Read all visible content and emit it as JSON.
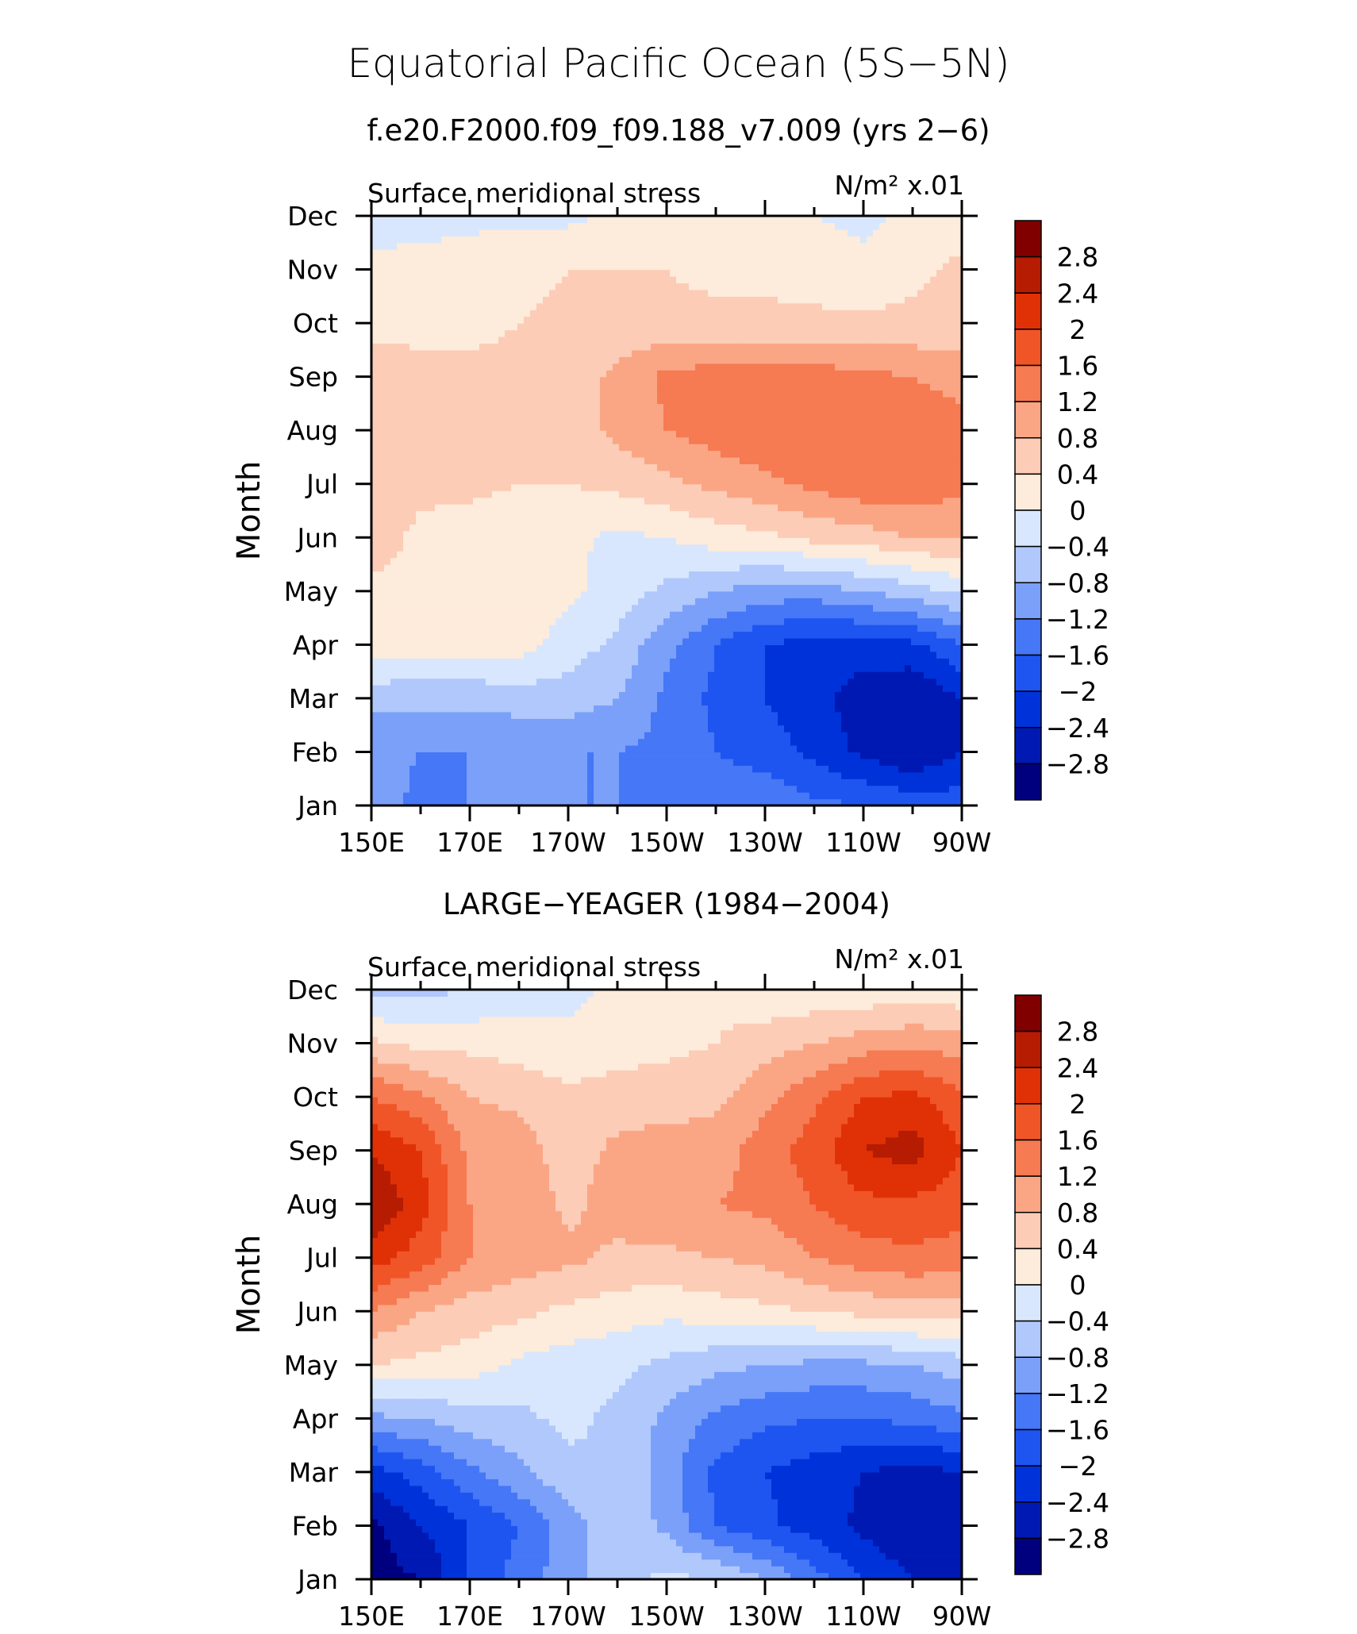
{
  "figure": {
    "title": "Equatorial Pacific Ocean (5S−5N)",
    "subtitle": "f.e20.F2000.f09_f09.188_v7.009 (yrs 2−6)"
  },
  "chart_data": [
    {
      "type": "heatmap",
      "panel_title": "",
      "left_label": "Surface meridional stress",
      "units_label": "N/m² x.01",
      "xlabel": "",
      "ylabel": "Month",
      "x_ticks": [
        "150E",
        "170E",
        "170W",
        "150W",
        "130W",
        "110W",
        "90W"
      ],
      "y_ticks": [
        "Jan",
        "Feb",
        "Mar",
        "Apr",
        "May",
        "Jun",
        "Jul",
        "Aug",
        "Sep",
        "Oct",
        "Nov",
        "Dec"
      ],
      "x_lon": [
        150,
        160,
        170,
        180,
        190,
        200,
        210,
        220,
        230,
        240,
        250,
        260,
        270
      ],
      "z": [
        [
          -1.0,
          -1.3,
          -1.2,
          -1.2,
          -1.2,
          -1.2,
          -1.2,
          -1.2,
          -1.3,
          -1.5,
          -1.6,
          -1.7,
          -1.8
        ],
        [
          -1.1,
          -1.2,
          -1.2,
          -1.2,
          -1.2,
          -1.2,
          -1.3,
          -1.6,
          -1.8,
          -2.1,
          -2.5,
          -2.8,
          -2.4
        ],
        [
          -0.7,
          -0.7,
          -0.7,
          -0.6,
          -0.6,
          -0.8,
          -1.3,
          -1.7,
          -2.0,
          -2.3,
          -2.6,
          -2.8,
          -2.4
        ],
        [
          0.3,
          0.2,
          0.2,
          0.2,
          -0.2,
          -0.5,
          -1.1,
          -1.6,
          -2.0,
          -2.2,
          -2.2,
          -2.1,
          -1.6
        ],
        [
          0.3,
          0.3,
          0.3,
          0.2,
          0.1,
          -0.2,
          -0.5,
          -0.8,
          -1.0,
          -1.0,
          -0.8,
          -0.6,
          -0.3
        ],
        [
          0.6,
          0.3,
          0.2,
          0.1,
          0.1,
          -0.1,
          0.0,
          0.2,
          0.3,
          0.5,
          0.6,
          0.8,
          0.8
        ],
        [
          0.6,
          0.5,
          0.5,
          0.4,
          0.4,
          0.5,
          0.7,
          0.9,
          1.1,
          1.3,
          1.5,
          1.5,
          1.3
        ],
        [
          0.4,
          0.4,
          0.5,
          0.5,
          0.6,
          0.9,
          1.2,
          1.4,
          1.5,
          1.5,
          1.5,
          1.4,
          1.3
        ],
        [
          0.6,
          0.5,
          0.5,
          0.5,
          0.6,
          0.9,
          1.3,
          1.4,
          1.4,
          1.4,
          1.3,
          1.2,
          1.1
        ],
        [
          0.3,
          0.3,
          0.3,
          0.4,
          0.5,
          0.5,
          0.5,
          0.5,
          0.5,
          0.5,
          0.5,
          0.5,
          0.5
        ],
        [
          0.1,
          0.2,
          0.2,
          0.3,
          0.4,
          0.4,
          0.4,
          0.3,
          0.3,
          0.2,
          0.1,
          0.3,
          0.5
        ],
        [
          -0.2,
          -0.2,
          -0.1,
          -0.1,
          -0.1,
          0.1,
          0.1,
          0.1,
          0.1,
          0.0,
          -0.1,
          0.1,
          0.2
        ]
      ],
      "levels": [
        -2.8,
        -2.4,
        -2.0,
        -1.6,
        -1.2,
        -0.8,
        -0.4,
        0,
        0.4,
        0.8,
        1.2,
        1.6,
        2.0,
        2.4,
        2.8
      ],
      "colorbar_labels": [
        "−2.8",
        "−2.4",
        "−2",
        "−1.6",
        "−1.2",
        "−0.8",
        "−0.4",
        "0",
        "0.4",
        "0.8",
        "1.2",
        "1.6",
        "2",
        "2.4",
        "2.8"
      ],
      "colors": [
        "#00007f",
        "#0019b3",
        "#0032d9",
        "#1e55f0",
        "#4577f6",
        "#7ba0fa",
        "#b0c8fc",
        "#d8e7fd",
        "#fdebdb",
        "#fcccb6",
        "#faa685",
        "#f67a52",
        "#f05528",
        "#e03106",
        "#b51c02",
        "#800000"
      ]
    },
    {
      "type": "heatmap",
      "panel_title": "LARGE−YEAGER (1984−2004)",
      "left_label": "Surface meridional stress",
      "units_label": "N/m² x.01",
      "xlabel": "",
      "ylabel": "Month",
      "x_ticks": [
        "150E",
        "170E",
        "170W",
        "150W",
        "130W",
        "110W",
        "90W"
      ],
      "y_ticks": [
        "Jan",
        "Feb",
        "Mar",
        "Apr",
        "May",
        "Jun",
        "Jul",
        "Aug",
        "Sep",
        "Oct",
        "Nov",
        "Dec"
      ],
      "x_lon": [
        150,
        160,
        170,
        180,
        190,
        200,
        210,
        220,
        230,
        240,
        250,
        260,
        270
      ],
      "z": [
        [
          -3.0,
          -2.8,
          -2.0,
          -1.4,
          -1.0,
          -0.5,
          -0.3,
          -0.4,
          -0.8,
          -1.4,
          -2.0,
          -2.4,
          -2.4
        ],
        [
          -2.9,
          -2.4,
          -2.0,
          -1.6,
          -1.0,
          -0.5,
          -0.9,
          -1.6,
          -1.9,
          -2.2,
          -2.5,
          -2.8,
          -2.8
        ],
        [
          -2.2,
          -1.8,
          -1.3,
          -0.9,
          -0.5,
          -0.4,
          -1.0,
          -1.7,
          -2.0,
          -2.2,
          -2.4,
          -2.6,
          -2.4
        ],
        [
          -0.9,
          -0.8,
          -0.6,
          -0.5,
          -0.3,
          -0.5,
          -0.9,
          -1.3,
          -1.5,
          -1.6,
          -1.6,
          -1.5,
          -1.3
        ],
        [
          0.4,
          0.3,
          0.2,
          -0.1,
          -0.2,
          -0.3,
          -0.5,
          -0.7,
          -0.8,
          -0.9,
          -0.9,
          -0.8,
          -0.6
        ],
        [
          1.2,
          0.8,
          0.6,
          0.5,
          0.3,
          0.2,
          0.1,
          0.2,
          0.3,
          0.4,
          0.5,
          0.6,
          0.6
        ],
        [
          2.2,
          1.8,
          1.2,
          1.0,
          0.9,
          0.7,
          0.7,
          0.8,
          0.9,
          1.2,
          1.4,
          1.5,
          1.4
        ],
        [
          2.8,
          2.2,
          1.2,
          1.1,
          0.7,
          1.0,
          1.1,
          1.2,
          1.3,
          1.6,
          1.9,
          1.9,
          1.8
        ],
        [
          2.4,
          2.0,
          1.1,
          1.0,
          0.6,
          0.9,
          1.0,
          1.0,
          1.4,
          1.8,
          2.4,
          2.6,
          2.0
        ],
        [
          1.6,
          1.3,
          0.8,
          0.7,
          0.5,
          0.6,
          0.6,
          0.7,
          1.1,
          1.5,
          2.0,
          2.1,
          1.7
        ],
        [
          0.5,
          0.3,
          0.3,
          0.2,
          0.1,
          0.2,
          0.3,
          0.4,
          0.6,
          0.8,
          1.0,
          1.1,
          1.0
        ],
        [
          -0.6,
          -0.5,
          -0.4,
          -0.2,
          -0.1,
          0.1,
          0.3,
          0.3,
          0.1,
          0.1,
          0.1,
          0.2,
          0.1
        ]
      ],
      "levels": [
        -2.8,
        -2.4,
        -2.0,
        -1.6,
        -1.2,
        -0.8,
        -0.4,
        0,
        0.4,
        0.8,
        1.2,
        1.6,
        2.0,
        2.4,
        2.8
      ],
      "colorbar_labels": [
        "−2.8",
        "−2.4",
        "−2",
        "−1.6",
        "−1.2",
        "−0.8",
        "−0.4",
        "0",
        "0.4",
        "0.8",
        "1.2",
        "1.6",
        "2",
        "2.4",
        "2.8"
      ],
      "colors": [
        "#00007f",
        "#0019b3",
        "#0032d9",
        "#1e55f0",
        "#4577f6",
        "#7ba0fa",
        "#b0c8fc",
        "#d8e7fd",
        "#fdebdb",
        "#fcccb6",
        "#faa685",
        "#f67a52",
        "#f05528",
        "#e03106",
        "#b51c02",
        "#800000"
      ]
    }
  ]
}
